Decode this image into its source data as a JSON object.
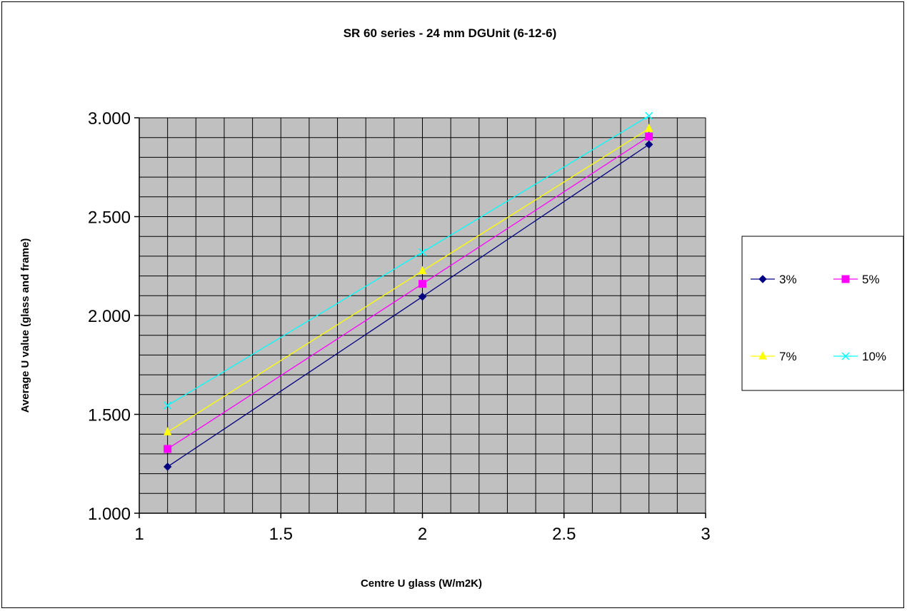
{
  "chart_data": {
    "type": "line",
    "title": "SR 60 series - 24 mm DGUnit (6-12-6)",
    "xlabel": "Centre U glass (W/m2K)",
    "ylabel": "Average U value (glass and frame)",
    "xlim": [
      1,
      3
    ],
    "ylim": [
      1.0,
      3.0
    ],
    "x_ticks": [
      "1",
      "1.5",
      "2",
      "2.5",
      "3"
    ],
    "y_ticks": [
      "1.000",
      "1.500",
      "2.000",
      "2.500",
      "3.000"
    ],
    "grid": true,
    "legend_position": "right",
    "x": [
      1.1,
      2.0,
      2.8
    ],
    "series": [
      {
        "name": "3%",
        "values": [
          1.235,
          2.095,
          2.865
        ],
        "color": "#000080",
        "marker": "diamond"
      },
      {
        "name": "5%",
        "values": [
          1.325,
          2.16,
          2.905
        ],
        "color": "#ff00ff",
        "marker": "square"
      },
      {
        "name": "7%",
        "values": [
          1.41,
          2.225,
          2.945
        ],
        "color": "#ffff00",
        "marker": "triangle"
      },
      {
        "name": "10%",
        "values": [
          1.545,
          2.32,
          3.01
        ],
        "color": "#00ffff",
        "marker": "x"
      }
    ],
    "plot_background": "#c0c0c0"
  }
}
